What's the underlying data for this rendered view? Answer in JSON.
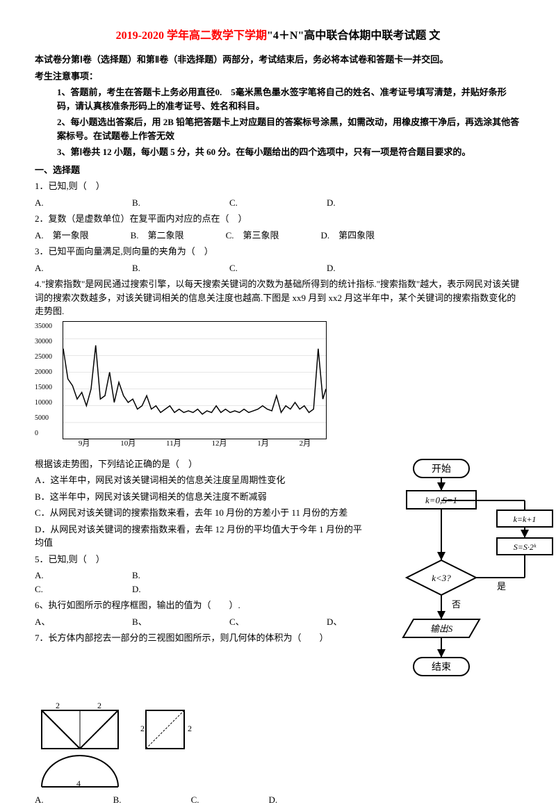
{
  "title_red": "2019-2020 学年高二数学下学期",
  "title_black": "\"4＋N\"高中联合体期中联考试题 文",
  "intro": "本试卷分第Ⅰ卷（选择题）和第Ⅱ卷（非选择题）两部分，考试结束后，务必将本试卷和答题卡一并交回。",
  "notice_title": "考生注意事项：",
  "notice1": "1、答题前，考生在答题卡上务必用直径0.　5毫米黑色墨水签字笔将自己的姓名、准考证号填写清楚，并贴好条形码，请认真核准条形码上的准考证号、姓名和科目。",
  "notice2": "2、每小题选出答案后，用 2B 铅笔把答题卡上对应题目的答案标号涂黑，如需改动，用橡皮擦干净后，再选涂其他答案标号。在试题卷上作答无效",
  "notice3": "3、第Ⅰ卷共 12 小题，每小题 5 分，共 60 分。在每小题给出的四个选项中，只有一项是符合题目要求的。",
  "section1": "一、选择题",
  "q1": "1．已知,则（　）",
  "q1_choices": {
    "a": "A.",
    "b": "B.",
    "c": "C.",
    "d": "D."
  },
  "q2": "2．复数（是虚数单位）在复平面内对应的点在（　）",
  "q2_choices": {
    "a": "A.　第一象限",
    "b": "B.　第二象限",
    "c": "C.　第三象限",
    "d": "D.　第四象限"
  },
  "q3": "3．已知平面向量满足,则向量的夹角为（　）",
  "q3_choices": {
    "a": "A.",
    "b": "B.",
    "c": "C.",
    "d": "D."
  },
  "q4a": "4.\"搜索指数\"是网民通过搜索引擎，以每天搜索关键词的次数为基础所得到的统计指标.\"搜索指数\"越大，表示网民对该关键词的搜索次数越多，对该关键词相关的信息关注度也越高.下图是 xx9 月到 xx2 月这半年中，某个关键词的搜索指数变化的走势图.",
  "chart": {
    "type": "line",
    "y_ticks": [
      "35000",
      "30000",
      "25000",
      "20000",
      "15000",
      "10000",
      "5000",
      "0"
    ],
    "x_ticks": [
      "9月",
      "10月",
      "11月",
      "12月",
      "1月",
      "2月"
    ],
    "ylim": [
      0,
      35000
    ],
    "line_color": "#000000",
    "background_color": "#ffffff",
    "points": [
      [
        0,
        27000
      ],
      [
        3,
        18000
      ],
      [
        6,
        16000
      ],
      [
        9,
        12000
      ],
      [
        12,
        14000
      ],
      [
        15,
        10000
      ],
      [
        18,
        15000
      ],
      [
        21,
        28000
      ],
      [
        24,
        12000
      ],
      [
        27,
        13000
      ],
      [
        30,
        20000
      ],
      [
        33,
        11000
      ],
      [
        36,
        17000
      ],
      [
        39,
        13000
      ],
      [
        42,
        11000
      ],
      [
        45,
        12000
      ],
      [
        48,
        9000
      ],
      [
        51,
        10000
      ],
      [
        54,
        13000
      ],
      [
        57,
        9000
      ],
      [
        60,
        10000
      ],
      [
        63,
        8000
      ],
      [
        66,
        9000
      ],
      [
        69,
        10000
      ],
      [
        72,
        8000
      ],
      [
        75,
        9000
      ],
      [
        78,
        8000
      ],
      [
        81,
        8500
      ],
      [
        84,
        8000
      ],
      [
        87,
        9000
      ],
      [
        90,
        7500
      ],
      [
        93,
        8500
      ],
      [
        96,
        8000
      ],
      [
        99,
        10000
      ],
      [
        102,
        8000
      ],
      [
        105,
        9000
      ],
      [
        108,
        8000
      ],
      [
        111,
        8500
      ],
      [
        114,
        8000
      ],
      [
        117,
        9000
      ],
      [
        120,
        8000
      ],
      [
        123,
        8500
      ],
      [
        126,
        9000
      ],
      [
        129,
        10000
      ],
      [
        132,
        9000
      ],
      [
        135,
        8500
      ],
      [
        138,
        13000
      ],
      [
        141,
        8000
      ],
      [
        144,
        10000
      ],
      [
        147,
        9000
      ],
      [
        150,
        11000
      ],
      [
        153,
        9000
      ],
      [
        156,
        10000
      ],
      [
        159,
        8000
      ],
      [
        162,
        9000
      ],
      [
        165,
        27000
      ],
      [
        168,
        12000
      ],
      [
        170,
        15000
      ]
    ]
  },
  "q4b": "根据该走势图，下列结论正确的是（　）",
  "q4_opts": {
    "a": "A．这半年中，网民对该关键词相关的信息关注度呈周期性变化",
    "b": "B．这半年中，网民对该关键词相关的信息关注度不断减弱",
    "c": "C．从网民对该关键词的搜索指数来看，去年 10 月份的方差小于 11 月份的方差",
    "d": "D．从网民对该关键词的搜索指数来看，去年 12 月份的平均值大于今年 1 月份的平均值"
  },
  "q5": "5．已知,则（　）",
  "q5_choices": {
    "a": "A.",
    "b": "B.",
    "c": "C.",
    "d": "D."
  },
  "q6": "6、执行如图所示的程序框图，输出的值为（　　）.",
  "q6_choices": {
    "a": "A、",
    "b": "B、",
    "c": "C、",
    "d": "D、"
  },
  "q7": "7．长方体内部挖去一部分的三视图如图所示，则几何体的体积为（　　）",
  "q7_choices": {
    "a": "A.",
    "b": "B.",
    "c": "C.",
    "d": "D."
  },
  "flowchart": {
    "nodes": {
      "start": "开始",
      "init": "k=0,S=1",
      "inc": "k=k+1",
      "mult": "S=S·2ᵏ",
      "cond": "k<3?",
      "out": "输出S",
      "end": "结束",
      "yes": "是",
      "no": "否"
    },
    "border_color": "#000000",
    "bg_color": "#ffffff",
    "font_size": 13
  },
  "three_view": {
    "top_w": "2",
    "top_h": "2",
    "front_w": "4",
    "front_h": "2",
    "side_w": "2",
    "side_h": "2",
    "line_color": "#000000"
  }
}
